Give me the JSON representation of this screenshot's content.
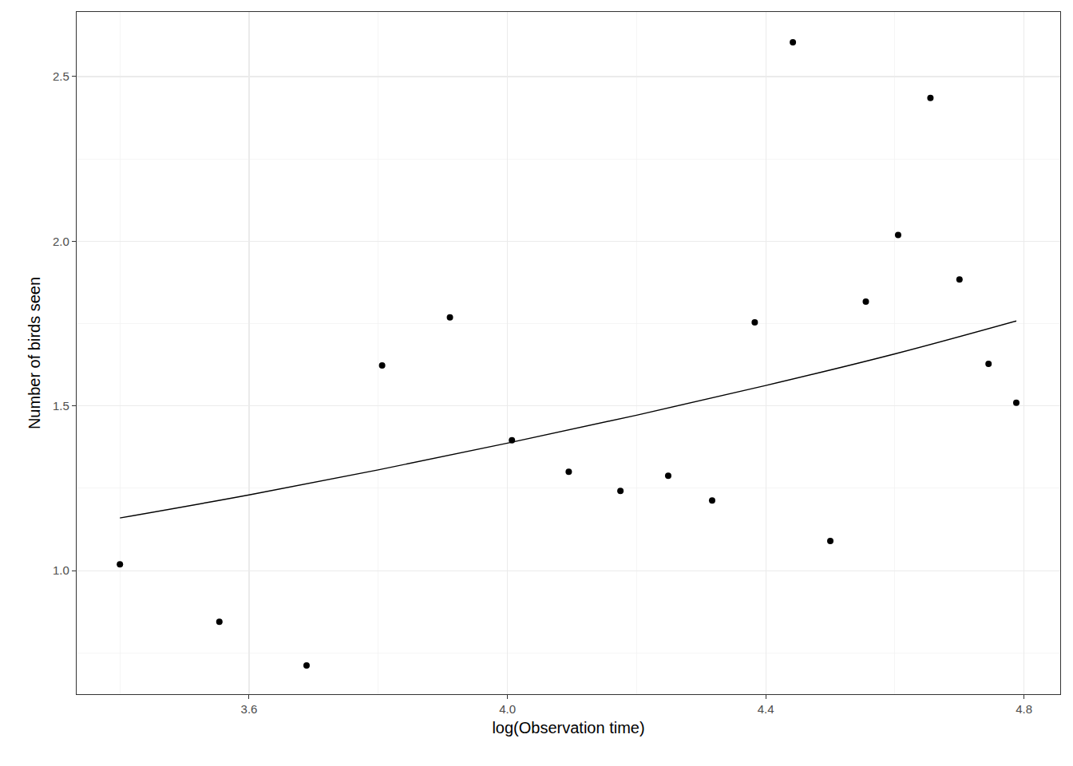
{
  "chart_data": {
    "type": "scatter",
    "x_label": "log(Observation time)",
    "y_label": "Number of birds seen",
    "xlim": [
      3.333,
      4.856
    ],
    "ylim": [
      0.625,
      2.696
    ],
    "xticks": [
      3.6,
      {
        "value": 4,
        "label": "4.0"
      },
      4.4,
      4.8
    ],
    "yticks": [
      {
        "value": 1,
        "label": "1.0"
      },
      1.5,
      {
        "value": 2,
        "label": "2.0"
      },
      2.5
    ],
    "grid": true,
    "series": [
      {
        "type": "scatter",
        "marker": "circle",
        "color": "#000000",
        "x": [
          3.4,
          3.554,
          3.689,
          3.806,
          3.911,
          4.007,
          4.095,
          4.175,
          4.249,
          4.317,
          4.383,
          4.442,
          4.5,
          4.555,
          4.605,
          4.655,
          4.7,
          4.745,
          4.788
        ],
        "values": [
          1.019,
          0.845,
          0.712,
          1.623,
          1.769,
          1.396,
          1.3,
          1.242,
          1.288,
          1.213,
          1.754,
          2.604,
          1.09,
          1.817,
          2.019,
          2.435,
          1.884,
          1.628,
          1.51
        ]
      },
      {
        "type": "line",
        "line_style": "solid",
        "color": "#000000",
        "x": [
          3.4,
          3.6,
          3.8,
          4.0,
          4.2,
          4.4,
          4.6,
          4.788
        ],
        "values": [
          1.16,
          1.23,
          1.306,
          1.387,
          1.472,
          1.562,
          1.658,
          1.758
        ]
      }
    ]
  }
}
